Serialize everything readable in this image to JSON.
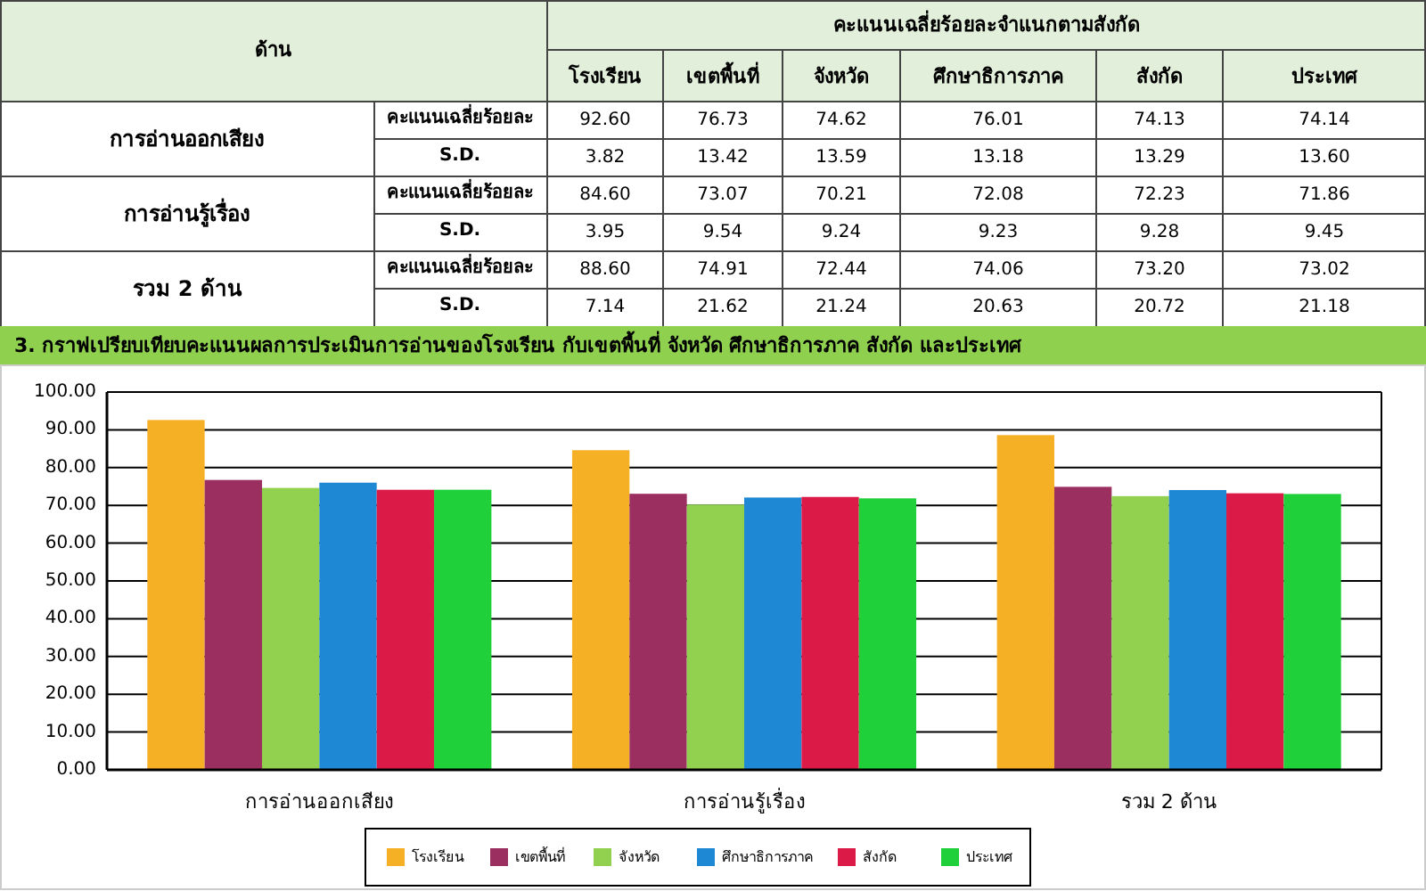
{
  "chart_data": [
    {
      "type": "other",
      "title": "คะแนนเฉลี่ยร้อยละจำแนกตามสังกัด",
      "annotations": [
        "ด้าน",
        "การอ่านออกเสียง",
        "การอ่านรู้เรื่อง",
        "รวม 2 ด้าน"
      ],
      "categories": [
        "โรงเรียน",
        "เขตพื้นที่",
        "จังหวัด",
        "ศึกษาธิการภาค",
        "สังกัด",
        "ประเทศ"
      ],
      "series": [
        {
          "name": "คะแนนเฉลี่ยร้อยละ",
          "values": [
            92.6,
            76.73,
            74.62,
            76.01,
            74.13,
            74.14
          ],
          "value_labels": [
            "92.60",
            "76.73",
            "74.62",
            "76.01",
            "74.13",
            "74.14"
          ]
        },
        {
          "name": "S.D.",
          "values": [
            3.82,
            13.42,
            13.59,
            13.18,
            13.29,
            13.6
          ],
          "value_labels": [
            "3.82",
            "13.42",
            "13.59",
            "13.18",
            "13.29",
            "13.60"
          ]
        },
        {
          "name": "คะแนนเฉลี่ยร้อยละ",
          "values": [
            84.6,
            73.07,
            70.21,
            72.08,
            72.23,
            71.86
          ],
          "value_labels": [
            "84.60",
            "73.07",
            "70.21",
            "72.08",
            "72.23",
            "71.86"
          ]
        },
        {
          "name": "S.D.",
          "values": [
            3.95,
            9.54,
            9.24,
            9.23,
            9.28,
            9.45
          ],
          "value_labels": [
            "3.95",
            "9.54",
            "9.24",
            "9.23",
            "9.28",
            "9.45"
          ]
        },
        {
          "name": "คะแนนเฉลี่ยร้อยละ",
          "values": [
            88.6,
            74.91,
            72.44,
            74.06,
            73.2,
            73.02
          ],
          "value_labels": [
            "88.60",
            "74.91",
            "72.44",
            "74.06",
            "73.20",
            "73.02"
          ]
        },
        {
          "name": "S.D.",
          "values": [
            7.14,
            21.62,
            21.24,
            20.63,
            20.72,
            21.18
          ],
          "value_labels": [
            "7.14",
            "21.62",
            "21.24",
            "20.63",
            "20.72",
            "21.18"
          ]
        }
      ]
    },
    {
      "type": "bar",
      "title": "3. กราฟเปรียบเทียบคะแนนผลการประเมินการอ่านของโรงเรียน กับเขตพื้นที่ จังหวัด ศึกษาธิการภาค สังกัด และประเทศ",
      "categories": [
        "การอ่านออกเสียง",
        "การอ่านรู้เรื่อง",
        "รวม 2 ด้าน"
      ],
      "series": [
        {
          "name": "โรงเรียน",
          "color": "#f6b025",
          "values": [
            92.6,
            84.6,
            88.6
          ]
        },
        {
          "name": "เขตพื้นที่",
          "color": "#9b3060",
          "values": [
            76.73,
            73.07,
            74.91
          ]
        },
        {
          "name": "จังหวัด",
          "color": "#92d050",
          "values": [
            74.62,
            70.21,
            72.44
          ]
        },
        {
          "name": "ศึกษาธิการภาค",
          "color": "#1f88d4",
          "values": [
            76.01,
            72.08,
            74.06
          ]
        },
        {
          "name": "สังกัด",
          "color": "#dc1a48",
          "values": [
            74.13,
            72.23,
            73.2
          ]
        },
        {
          "name": "ประเทศ",
          "color": "#20d03a",
          "values": [
            74.14,
            71.86,
            73.02
          ]
        }
      ],
      "ylim": [
        0,
        100
      ],
      "yticks": [
        {
          "value": 0,
          "label": "0.00"
        },
        {
          "value": 10,
          "label": "10.00"
        },
        {
          "value": 20,
          "label": "20.00"
        },
        {
          "value": 30,
          "label": "30.00"
        },
        {
          "value": 40,
          "label": "40.00"
        },
        {
          "value": 50,
          "label": "50.00"
        },
        {
          "value": 60,
          "label": "60.00"
        },
        {
          "value": 70,
          "label": "70.00"
        },
        {
          "value": 80,
          "label": "80.00"
        },
        {
          "value": 90,
          "label": "90.00"
        },
        {
          "value": 100,
          "label": "100.00"
        }
      ],
      "grid": "y",
      "legend": "bottom"
    }
  ]
}
